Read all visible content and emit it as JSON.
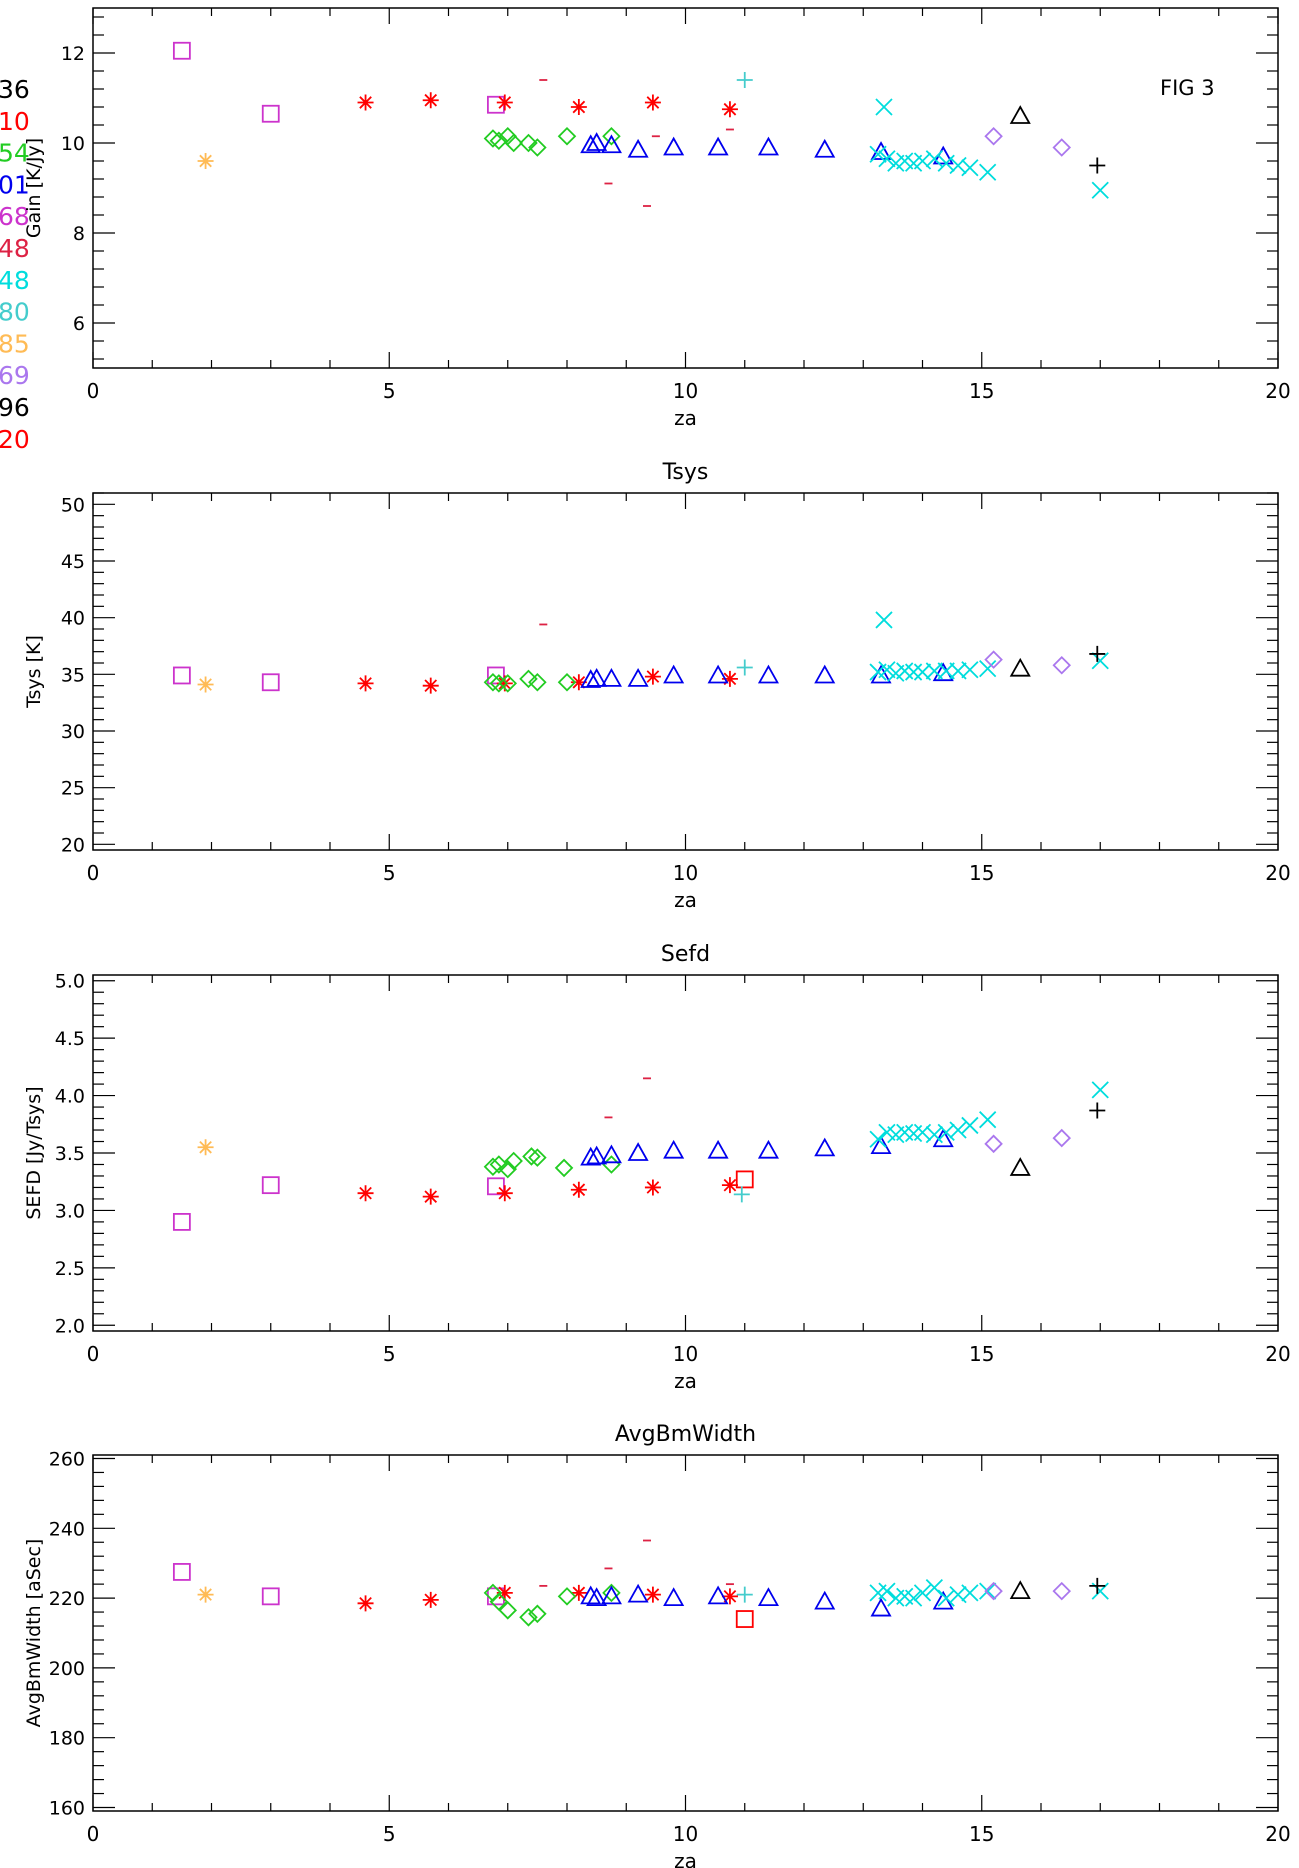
{
  "figure_label": "FIG   3",
  "legend": {
    "entries": [
      {
        "label": "36",
        "color": "#000000"
      },
      {
        "label": "10",
        "color": "#ff0000"
      },
      {
        "label": "54",
        "color": "#22cc22"
      },
      {
        "label": "01",
        "color": "#0000ee"
      },
      {
        "label": "68",
        "color": "#cc33cc"
      },
      {
        "label": "48",
        "color": "#dd2244"
      },
      {
        "label": "48",
        "color": "#00dddd"
      },
      {
        "label": "80",
        "color": "#44cccc"
      },
      {
        "label": "85",
        "color": "#ffbb55"
      },
      {
        "label": "69",
        "color": "#aa77ee"
      },
      {
        "label": "96",
        "color": "#000000"
      },
      {
        "label": "20",
        "color": "#ff0000"
      }
    ]
  },
  "chart_data": [
    {
      "type": "scatter",
      "title": "",
      "xlabel": "za",
      "ylabel": "Gain [K/Jy]",
      "xlim": [
        0,
        20
      ],
      "ylim": [
        5,
        13
      ],
      "yticks": [
        6,
        8,
        10,
        12
      ],
      "xticks": [
        0,
        5,
        10,
        15,
        20
      ],
      "series": [
        {
          "marker": "square",
          "color": "#cc33cc",
          "x": [
            1.5,
            3.0,
            6.8
          ],
          "y": [
            12.05,
            10.65,
            10.85
          ]
        },
        {
          "marker": "asterisk",
          "color": "#ffbb55",
          "x": [
            1.9
          ],
          "y": [
            9.6
          ]
        },
        {
          "marker": "asterisk",
          "color": "#ff0000",
          "x": [
            4.6,
            5.7,
            6.95,
            8.2,
            9.45,
            10.75
          ],
          "y": [
            10.9,
            10.95,
            10.9,
            10.8,
            10.9,
            10.75
          ]
        },
        {
          "marker": "diamond",
          "color": "#22cc22",
          "x": [
            6.75,
            6.85,
            7.0,
            7.1,
            7.35,
            7.5,
            8.0,
            8.75
          ],
          "y": [
            10.1,
            10.05,
            10.15,
            10.0,
            10.0,
            9.9,
            10.15,
            10.15
          ]
        },
        {
          "marker": "triangle",
          "color": "#0000ee",
          "x": [
            8.4,
            8.5,
            8.75,
            9.2,
            9.8,
            10.55,
            11.4,
            12.35,
            13.3,
            14.35
          ],
          "y": [
            9.95,
            10.0,
            9.95,
            9.85,
            9.9,
            9.9,
            9.9,
            9.85,
            9.8,
            9.7
          ]
        },
        {
          "marker": "dash",
          "color": "#dd2244",
          "x": [
            7.6,
            8.7,
            9.35,
            9.5,
            10.75
          ],
          "y": [
            11.4,
            9.1,
            8.6,
            10.15,
            10.3
          ]
        },
        {
          "marker": "plus",
          "color": "#44cccc",
          "x": [
            11.0
          ],
          "y": [
            11.4
          ]
        },
        {
          "marker": "cross",
          "color": "#00dddd",
          "x": [
            13.25,
            13.4,
            13.55,
            13.7,
            13.85,
            14.0,
            14.2,
            14.4,
            14.6,
            14.8,
            15.1,
            13.35,
            17.0
          ],
          "y": [
            9.75,
            9.65,
            9.55,
            9.6,
            9.55,
            9.6,
            9.65,
            9.55,
            9.5,
            9.45,
            9.35,
            10.8,
            8.95
          ]
        },
        {
          "marker": "diamond",
          "color": "#aa77ee",
          "x": [
            15.2,
            16.35
          ],
          "y": [
            10.15,
            9.9
          ]
        },
        {
          "marker": "triangle",
          "color": "#000000",
          "x": [
            15.65
          ],
          "y": [
            10.6
          ]
        },
        {
          "marker": "plus",
          "color": "#000000",
          "x": [
            16.95
          ],
          "y": [
            9.5
          ]
        }
      ]
    },
    {
      "type": "scatter",
      "title": "Tsys",
      "xlabel": "za",
      "ylabel": "Tsys [K]",
      "xlim": [
        0,
        20
      ],
      "ylim": [
        19.5,
        51
      ],
      "yticks": [
        20,
        25,
        30,
        35,
        40,
        45,
        50
      ],
      "xticks": [
        0,
        5,
        10,
        15,
        20
      ],
      "series": [
        {
          "marker": "square",
          "color": "#cc33cc",
          "x": [
            1.5,
            3.0,
            6.8
          ],
          "y": [
            34.9,
            34.3,
            34.9
          ]
        },
        {
          "marker": "asterisk",
          "color": "#ffbb55",
          "x": [
            1.9
          ],
          "y": [
            34.1
          ]
        },
        {
          "marker": "asterisk",
          "color": "#ff0000",
          "x": [
            4.6,
            5.7,
            6.95,
            8.2,
            9.45,
            10.75
          ],
          "y": [
            34.2,
            34.0,
            34.2,
            34.3,
            34.8,
            34.6
          ]
        },
        {
          "marker": "diamond",
          "color": "#22cc22",
          "x": [
            6.75,
            6.85,
            7.0,
            7.35,
            7.5,
            8.0
          ],
          "y": [
            34.3,
            34.2,
            34.2,
            34.6,
            34.3,
            34.3
          ]
        },
        {
          "marker": "triangle",
          "color": "#0000ee",
          "x": [
            8.4,
            8.5,
            8.75,
            9.2,
            9.8,
            10.55,
            11.4,
            12.35,
            13.3,
            14.35
          ],
          "y": [
            34.5,
            34.6,
            34.6,
            34.6,
            34.9,
            34.9,
            34.9,
            34.9,
            34.9,
            35.1
          ]
        },
        {
          "marker": "dash",
          "color": "#dd2244",
          "x": [
            7.6
          ],
          "y": [
            39.4
          ]
        },
        {
          "marker": "plus",
          "color": "#44cccc",
          "x": [
            11.0
          ],
          "y": [
            35.6
          ]
        },
        {
          "marker": "cross",
          "color": "#00dddd",
          "x": [
            13.25,
            13.4,
            13.55,
            13.7,
            13.85,
            14.0,
            14.2,
            14.4,
            14.6,
            14.8,
            15.1,
            13.35,
            17.0
          ],
          "y": [
            35.2,
            35.4,
            35.1,
            35.3,
            35.2,
            35.2,
            35.3,
            35.3,
            35.3,
            35.4,
            35.5,
            39.8,
            36.2
          ]
        },
        {
          "marker": "diamond",
          "color": "#aa77ee",
          "x": [
            15.2,
            16.35
          ],
          "y": [
            36.3,
            35.8
          ]
        },
        {
          "marker": "triangle",
          "color": "#000000",
          "x": [
            15.65
          ],
          "y": [
            35.5
          ]
        },
        {
          "marker": "plus",
          "color": "#000000",
          "x": [
            16.95
          ],
          "y": [
            36.8
          ]
        }
      ]
    },
    {
      "type": "scatter",
      "title": "Sefd",
      "xlabel": "za",
      "ylabel": "SEFD [Jy/Tsys]",
      "xlim": [
        0,
        20
      ],
      "ylim": [
        1.95,
        5.05
      ],
      "yticks": [
        2.0,
        2.5,
        3.0,
        3.5,
        4.0,
        4.5,
        5.0
      ],
      "xticks": [
        0,
        5,
        10,
        15,
        20
      ],
      "series": [
        {
          "marker": "square",
          "color": "#cc33cc",
          "x": [
            1.5,
            3.0,
            6.8
          ],
          "y": [
            2.9,
            3.22,
            3.21
          ]
        },
        {
          "marker": "asterisk",
          "color": "#ffbb55",
          "x": [
            1.9
          ],
          "y": [
            3.55
          ]
        },
        {
          "marker": "asterisk",
          "color": "#ff0000",
          "x": [
            4.6,
            5.7,
            6.95,
            8.2,
            9.45,
            10.75
          ],
          "y": [
            3.15,
            3.12,
            3.15,
            3.18,
            3.2,
            3.22
          ]
        },
        {
          "marker": "diamond",
          "color": "#22cc22",
          "x": [
            6.75,
            6.85,
            7.0,
            7.1,
            7.4,
            7.5,
            7.95,
            8.75
          ],
          "y": [
            3.38,
            3.4,
            3.36,
            3.43,
            3.47,
            3.46,
            3.37,
            3.4
          ]
        },
        {
          "marker": "triangle",
          "color": "#0000ee",
          "x": [
            8.4,
            8.5,
            8.75,
            9.2,
            9.8,
            10.55,
            11.4,
            12.35,
            13.3,
            14.35
          ],
          "y": [
            3.46,
            3.47,
            3.48,
            3.5,
            3.52,
            3.52,
            3.52,
            3.54,
            3.56,
            3.62
          ]
        },
        {
          "marker": "square",
          "color": "#ff0000",
          "x": [
            11.0
          ],
          "y": [
            3.27
          ]
        },
        {
          "marker": "dash",
          "color": "#dd2244",
          "x": [
            8.7,
            9.35
          ],
          "y": [
            3.81,
            4.15
          ]
        },
        {
          "marker": "plus",
          "color": "#44cccc",
          "x": [
            10.95
          ],
          "y": [
            3.14
          ]
        },
        {
          "marker": "cross",
          "color": "#00dddd",
          "x": [
            13.25,
            13.4,
            13.55,
            13.7,
            13.85,
            14.0,
            14.2,
            14.4,
            14.6,
            14.8,
            15.1,
            17.0
          ],
          "y": [
            3.62,
            3.68,
            3.66,
            3.68,
            3.67,
            3.68,
            3.66,
            3.68,
            3.7,
            3.74,
            3.79,
            4.05
          ]
        },
        {
          "marker": "diamond",
          "color": "#aa77ee",
          "x": [
            15.2,
            16.35
          ],
          "y": [
            3.58,
            3.63
          ]
        },
        {
          "marker": "triangle",
          "color": "#000000",
          "x": [
            15.65
          ],
          "y": [
            3.37
          ]
        },
        {
          "marker": "plus",
          "color": "#000000",
          "x": [
            16.95
          ],
          "y": [
            3.87
          ]
        }
      ]
    },
    {
      "type": "scatter",
      "title": "AvgBmWidth",
      "xlabel": "za",
      "ylabel": "AvgBmWidth [aSec]",
      "xlim": [
        0,
        20
      ],
      "ylim": [
        159,
        261
      ],
      "yticks": [
        160,
        180,
        200,
        220,
        240,
        260
      ],
      "xticks": [
        0,
        5,
        10,
        15,
        20
      ],
      "series": [
        {
          "marker": "square",
          "color": "#cc33cc",
          "x": [
            1.5,
            3.0,
            6.8
          ],
          "y": [
            227.5,
            220.5,
            220.5
          ]
        },
        {
          "marker": "asterisk",
          "color": "#ffbb55",
          "x": [
            1.9
          ],
          "y": [
            221.0
          ]
        },
        {
          "marker": "asterisk",
          "color": "#ff0000",
          "x": [
            4.6,
            5.7,
            6.95,
            8.2,
            9.45,
            10.75
          ],
          "y": [
            218.5,
            219.5,
            221.5,
            221.5,
            221.0,
            220.5
          ]
        },
        {
          "marker": "diamond",
          "color": "#22cc22",
          "x": [
            6.75,
            6.85,
            7.0,
            7.35,
            7.5,
            8.0,
            8.75
          ],
          "y": [
            221.5,
            219.0,
            216.5,
            214.5,
            215.5,
            220.5,
            221.5
          ]
        },
        {
          "marker": "triangle",
          "color": "#0000ee",
          "x": [
            8.4,
            8.5,
            8.75,
            9.2,
            9.8,
            10.55,
            11.4,
            12.35,
            13.3,
            14.35
          ],
          "y": [
            220.5,
            220.0,
            220.5,
            221.0,
            220.0,
            220.5,
            220.0,
            219.0,
            217.0,
            219.0
          ]
        },
        {
          "marker": "square",
          "color": "#ff0000",
          "x": [
            11.0
          ],
          "y": [
            214.0
          ]
        },
        {
          "marker": "dash",
          "color": "#dd2244",
          "x": [
            7.6,
            8.7,
            9.35,
            10.75
          ],
          "y": [
            223.5,
            228.5,
            236.5,
            224.0
          ]
        },
        {
          "marker": "plus",
          "color": "#44cccc",
          "x": [
            11.0
          ],
          "y": [
            221.0
          ]
        },
        {
          "marker": "cross",
          "color": "#00dddd",
          "x": [
            13.25,
            13.4,
            13.55,
            13.7,
            13.85,
            14.0,
            14.2,
            14.4,
            14.6,
            14.8,
            15.1,
            17.0
          ],
          "y": [
            221.5,
            222.0,
            220.0,
            220.5,
            220.0,
            221.5,
            223.0,
            220.0,
            221.0,
            221.5,
            222.0,
            222.0
          ]
        },
        {
          "marker": "diamond",
          "color": "#aa77ee",
          "x": [
            15.2,
            16.35
          ],
          "y": [
            222.0,
            222.0
          ]
        },
        {
          "marker": "triangle",
          "color": "#000000",
          "x": [
            15.65
          ],
          "y": [
            222.0
          ]
        },
        {
          "marker": "plus",
          "color": "#000000",
          "x": [
            16.95
          ],
          "y": [
            223.5
          ]
        }
      ]
    }
  ]
}
